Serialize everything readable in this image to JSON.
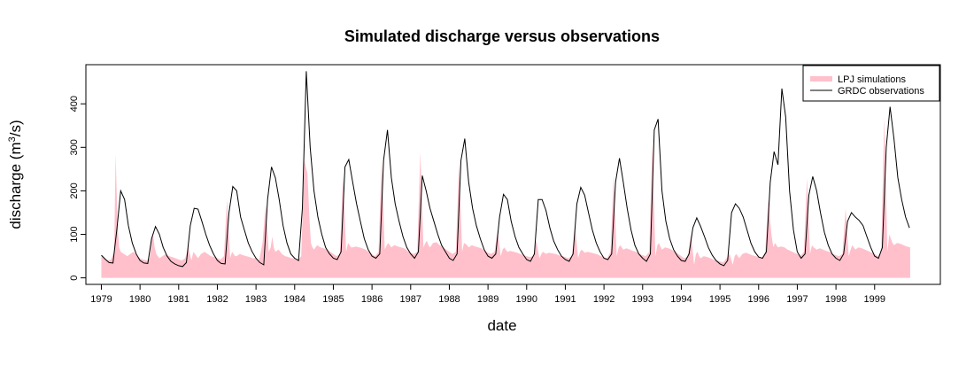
{
  "chart_data": {
    "type": "area",
    "title": "Simulated discharge versus observations",
    "xlabel": "date",
    "ylabel": "discharge (m",
    "ylabel_sup": "3",
    "ylabel_suffix": "/s)",
    "xlim": [
      1978.6,
      2000.7
    ],
    "ylim": [
      -15,
      490
    ],
    "grid": false,
    "legend_position": "top-right",
    "x_ticks": [
      1979,
      1980,
      1981,
      1982,
      1983,
      1984,
      1985,
      1986,
      1987,
      1988,
      1989,
      1990,
      1991,
      1992,
      1993,
      1994,
      1995,
      1996,
      1997,
      1998,
      1999
    ],
    "y_ticks": [
      0,
      100,
      200,
      300,
      400
    ],
    "series": [
      {
        "name": "LPJ simulations",
        "kind": "area",
        "color": "#ffc0cb",
        "x": [
          1979.0,
          1979.08,
          1979.17,
          1979.25,
          1979.33,
          1979.37,
          1979.42,
          1979.46,
          1979.5,
          1979.58,
          1979.67,
          1979.75,
          1979.83,
          1979.92,
          1980.0,
          1980.08,
          1980.17,
          1980.25,
          1980.33,
          1980.38,
          1980.42,
          1980.46,
          1980.5,
          1980.58,
          1980.67,
          1980.75,
          1980.83,
          1980.92,
          1981.0,
          1981.08,
          1981.17,
          1981.25,
          1981.33,
          1981.38,
          1981.42,
          1981.46,
          1981.5,
          1981.58,
          1981.67,
          1981.75,
          1981.83,
          1981.92,
          1982.0,
          1982.08,
          1982.17,
          1982.25,
          1982.33,
          1982.38,
          1982.42,
          1982.46,
          1982.5,
          1982.58,
          1982.67,
          1982.75,
          1982.83,
          1982.92,
          1983.0,
          1983.08,
          1983.17,
          1983.25,
          1983.33,
          1983.38,
          1983.42,
          1983.46,
          1983.5,
          1983.58,
          1983.67,
          1983.75,
          1983.83,
          1983.92,
          1984.0,
          1984.08,
          1984.17,
          1984.25,
          1984.33,
          1984.38,
          1984.42,
          1984.46,
          1984.5,
          1984.58,
          1984.67,
          1984.75,
          1984.83,
          1984.92,
          1985.0,
          1985.08,
          1985.17,
          1985.25,
          1985.33,
          1985.38,
          1985.42,
          1985.46,
          1985.5,
          1985.58,
          1985.67,
          1985.75,
          1985.83,
          1985.92,
          1986.0,
          1986.08,
          1986.17,
          1986.25,
          1986.33,
          1986.38,
          1986.42,
          1986.46,
          1986.5,
          1986.58,
          1986.67,
          1986.75,
          1986.83,
          1986.92,
          1987.0,
          1987.08,
          1987.17,
          1987.25,
          1987.33,
          1987.38,
          1987.42,
          1987.46,
          1987.5,
          1987.58,
          1987.67,
          1987.75,
          1987.83,
          1987.92,
          1988.0,
          1988.08,
          1988.17,
          1988.25,
          1988.33,
          1988.38,
          1988.42,
          1988.46,
          1988.5,
          1988.58,
          1988.67,
          1988.75,
          1988.83,
          1988.92,
          1989.0,
          1989.08,
          1989.17,
          1989.25,
          1989.33,
          1989.38,
          1989.42,
          1989.46,
          1989.5,
          1989.58,
          1989.67,
          1989.75,
          1989.83,
          1989.92,
          1990.0,
          1990.08,
          1990.17,
          1990.25,
          1990.33,
          1990.38,
          1990.42,
          1990.46,
          1990.5,
          1990.58,
          1990.67,
          1990.75,
          1990.83,
          1990.92,
          1991.0,
          1991.08,
          1991.17,
          1991.25,
          1991.33,
          1991.38,
          1991.42,
          1991.46,
          1991.5,
          1991.58,
          1991.67,
          1991.75,
          1991.83,
          1991.92,
          1992.0,
          1992.08,
          1992.17,
          1992.25,
          1992.33,
          1992.38,
          1992.42,
          1992.46,
          1992.5,
          1992.58,
          1992.67,
          1992.75,
          1992.83,
          1992.92,
          1993.0,
          1993.08,
          1993.17,
          1993.25,
          1993.33,
          1993.38,
          1993.42,
          1993.46,
          1993.5,
          1993.58,
          1993.67,
          1993.75,
          1993.83,
          1993.92,
          1994.0,
          1994.08,
          1994.17,
          1994.25,
          1994.33,
          1994.38,
          1994.42,
          1994.46,
          1994.5,
          1994.58,
          1994.67,
          1994.75,
          1994.83,
          1994.92,
          1995.0,
          1995.08,
          1995.17,
          1995.25,
          1995.33,
          1995.38,
          1995.42,
          1995.46,
          1995.5,
          1995.58,
          1995.67,
          1995.75,
          1995.83,
          1995.92,
          1996.0,
          1996.08,
          1996.17,
          1996.25,
          1996.33,
          1996.38,
          1996.42,
          1996.46,
          1996.5,
          1996.58,
          1996.67,
          1996.75,
          1996.83,
          1996.92,
          1997.0,
          1997.08,
          1997.17,
          1997.25,
          1997.33,
          1997.38,
          1997.42,
          1997.46,
          1997.5,
          1997.58,
          1997.67,
          1997.75,
          1997.83,
          1997.92,
          1998.0,
          1998.08,
          1998.17,
          1998.25,
          1998.33,
          1998.38,
          1998.42,
          1998.46,
          1998.5,
          1998.58,
          1998.67,
          1998.75,
          1998.83,
          1998.92,
          1999.0,
          1999.08,
          1999.17,
          1999.25,
          1999.33,
          1999.38,
          1999.42,
          1999.46,
          1999.5,
          1999.58,
          1999.67,
          1999.75,
          1999.83,
          1999.92
        ],
        "y": [
          50,
          45,
          40,
          42,
          60,
          285,
          120,
          70,
          60,
          55,
          50,
          55,
          60,
          52,
          45,
          42,
          40,
          45,
          105,
          70,
          55,
          50,
          45,
          50,
          55,
          50,
          48,
          45,
          42,
          40,
          45,
          70,
          40,
          60,
          55,
          50,
          45,
          55,
          60,
          55,
          50,
          48,
          45,
          42,
          50,
          180,
          45,
          60,
          55,
          50,
          50,
          55,
          52,
          50,
          48,
          45,
          45,
          40,
          80,
          170,
          60,
          70,
          95,
          70,
          60,
          65,
          55,
          50,
          48,
          45,
          45,
          40,
          50,
          270,
          240,
          140,
          80,
          70,
          65,
          75,
          70,
          68,
          65,
          60,
          55,
          50,
          55,
          240,
          60,
          80,
          75,
          70,
          70,
          72,
          70,
          68,
          65,
          60,
          55,
          50,
          60,
          270,
          65,
          75,
          80,
          75,
          70,
          75,
          72,
          70,
          68,
          62,
          58,
          55,
          60,
          290,
          70,
          80,
          85,
          75,
          70,
          80,
          82,
          75,
          70,
          65,
          60,
          55,
          60,
          270,
          60,
          80,
          78,
          75,
          70,
          75,
          72,
          70,
          68,
          62,
          58,
          55,
          60,
          110,
          50,
          65,
          70,
          65,
          60,
          62,
          60,
          58,
          55,
          52,
          50,
          48,
          50,
          85,
          45,
          55,
          60,
          58,
          55,
          58,
          56,
          55,
          52,
          50,
          48,
          45,
          50,
          120,
          45,
          60,
          65,
          62,
          58,
          60,
          58,
          56,
          54,
          50,
          48,
          45,
          60,
          235,
          50,
          70,
          75,
          70,
          65,
          68,
          65,
          62,
          60,
          55,
          52,
          50,
          60,
          310,
          50,
          75,
          80,
          72,
          65,
          70,
          68,
          65,
          60,
          55,
          50,
          45,
          50,
          100,
          30,
          55,
          60,
          50,
          45,
          50,
          48,
          45,
          42,
          40,
          38,
          35,
          45,
          55,
          30,
          50,
          55,
          50,
          45,
          55,
          58,
          55,
          52,
          50,
          48,
          45,
          60,
          180,
          100,
          70,
          80,
          75,
          70,
          72,
          70,
          65,
          62,
          58,
          55,
          50,
          60,
          230,
          55,
          75,
          70,
          68,
          65,
          68,
          65,
          62,
          60,
          55,
          52,
          50,
          55,
          160,
          50,
          65,
          75,
          70,
          65,
          70,
          68,
          65,
          62,
          58,
          55,
          50,
          60,
          370,
          60,
          100,
          90,
          80,
          75,
          80,
          78,
          75,
          72,
          70
        ]
      },
      {
        "name": "GRDC observations",
        "kind": "line",
        "color": "#000000",
        "x": [
          1979.0,
          1979.1,
          1979.2,
          1979.3,
          1979.4,
          1979.5,
          1979.6,
          1979.7,
          1979.8,
          1979.9,
          1980.0,
          1980.1,
          1980.2,
          1980.3,
          1980.4,
          1980.5,
          1980.6,
          1980.7,
          1980.8,
          1980.9,
          1981.0,
          1981.1,
          1981.2,
          1981.3,
          1981.4,
          1981.5,
          1981.6,
          1981.7,
          1981.8,
          1981.9,
          1982.0,
          1982.1,
          1982.2,
          1982.3,
          1982.4,
          1982.5,
          1982.6,
          1982.7,
          1982.8,
          1982.9,
          1983.0,
          1983.1,
          1983.2,
          1983.3,
          1983.4,
          1983.5,
          1983.6,
          1983.7,
          1983.8,
          1983.9,
          1984.0,
          1984.1,
          1984.2,
          1984.3,
          1984.4,
          1984.5,
          1984.6,
          1984.7,
          1984.8,
          1984.9,
          1985.0,
          1985.1,
          1985.2,
          1985.3,
          1985.4,
          1985.5,
          1985.6,
          1985.7,
          1985.8,
          1985.9,
          1986.0,
          1986.1,
          1986.2,
          1986.3,
          1986.4,
          1986.5,
          1986.6,
          1986.7,
          1986.8,
          1986.9,
          1987.0,
          1987.1,
          1987.2,
          1987.3,
          1987.4,
          1987.5,
          1987.6,
          1987.7,
          1987.8,
          1987.9,
          1988.0,
          1988.1,
          1988.2,
          1988.3,
          1988.4,
          1988.5,
          1988.6,
          1988.7,
          1988.8,
          1988.9,
          1989.0,
          1989.1,
          1989.2,
          1989.3,
          1989.4,
          1989.5,
          1989.6,
          1989.7,
          1989.8,
          1989.9,
          1990.0,
          1990.1,
          1990.2,
          1990.3,
          1990.4,
          1990.5,
          1990.6,
          1990.7,
          1990.8,
          1990.9,
          1991.0,
          1991.1,
          1991.2,
          1991.3,
          1991.4,
          1991.5,
          1991.6,
          1991.7,
          1991.8,
          1991.9,
          1992.0,
          1992.1,
          1992.2,
          1992.3,
          1992.4,
          1992.5,
          1992.6,
          1992.7,
          1992.8,
          1992.9,
          1993.0,
          1993.1,
          1993.2,
          1993.3,
          1993.4,
          1993.5,
          1993.6,
          1993.7,
          1993.8,
          1993.9,
          1994.0,
          1994.1,
          1994.2,
          1994.3,
          1994.4,
          1994.5,
          1994.6,
          1994.7,
          1994.8,
          1994.9,
          1995.0,
          1995.1,
          1995.2,
          1995.3,
          1995.4,
          1995.5,
          1995.6,
          1995.7,
          1995.8,
          1995.9,
          1996.0,
          1996.1,
          1996.2,
          1996.3,
          1996.4,
          1996.5,
          1996.6,
          1996.7,
          1996.8,
          1996.9,
          1997.0,
          1997.1,
          1997.2,
          1997.3,
          1997.4,
          1997.5,
          1997.6,
          1997.7,
          1997.8,
          1997.9,
          1998.0,
          1998.1,
          1998.2,
          1998.3,
          1998.4,
          1998.5,
          1998.6,
          1998.7,
          1998.8,
          1998.9,
          1999.0,
          1999.1,
          1999.2,
          1999.3,
          1999.4,
          1999.5,
          1999.6,
          1999.7,
          1999.8,
          1999.9
        ],
        "y": [
          52,
          43,
          35,
          34,
          110,
          200,
          180,
          120,
          80,
          55,
          40,
          34,
          33,
          90,
          118,
          100,
          70,
          50,
          38,
          32,
          28,
          26,
          35,
          120,
          160,
          158,
          130,
          100,
          75,
          55,
          40,
          33,
          32,
          150,
          210,
          200,
          140,
          110,
          80,
          60,
          45,
          35,
          30,
          180,
          255,
          230,
          180,
          120,
          80,
          55,
          45,
          40,
          160,
          475,
          300,
          200,
          140,
          100,
          70,
          55,
          45,
          42,
          60,
          255,
          272,
          220,
          170,
          130,
          90,
          65,
          50,
          45,
          55,
          270,
          340,
          230,
          170,
          130,
          95,
          70,
          55,
          45,
          60,
          235,
          200,
          160,
          130,
          100,
          75,
          60,
          45,
          40,
          55,
          270,
          320,
          220,
          160,
          120,
          90,
          65,
          50,
          45,
          55,
          140,
          192,
          180,
          130,
          95,
          70,
          55,
          42,
          38,
          55,
          180,
          180,
          155,
          115,
          85,
          65,
          50,
          42,
          38,
          55,
          170,
          208,
          190,
          150,
          110,
          80,
          60,
          45,
          42,
          55,
          220,
          275,
          220,
          160,
          110,
          75,
          55,
          45,
          38,
          55,
          340,
          365,
          200,
          130,
          90,
          65,
          50,
          40,
          38,
          55,
          115,
          138,
          118,
          95,
          70,
          52,
          40,
          32,
          28,
          40,
          150,
          170,
          160,
          140,
          110,
          80,
          60,
          48,
          45,
          60,
          220,
          290,
          260,
          435,
          370,
          200,
          110,
          60,
          45,
          55,
          190,
          233,
          200,
          150,
          105,
          75,
          55,
          45,
          40,
          55,
          130,
          150,
          140,
          132,
          120,
          95,
          70,
          50,
          45,
          70,
          300,
          393,
          320,
          230,
          180,
          140,
          115
        ]
      }
    ]
  }
}
